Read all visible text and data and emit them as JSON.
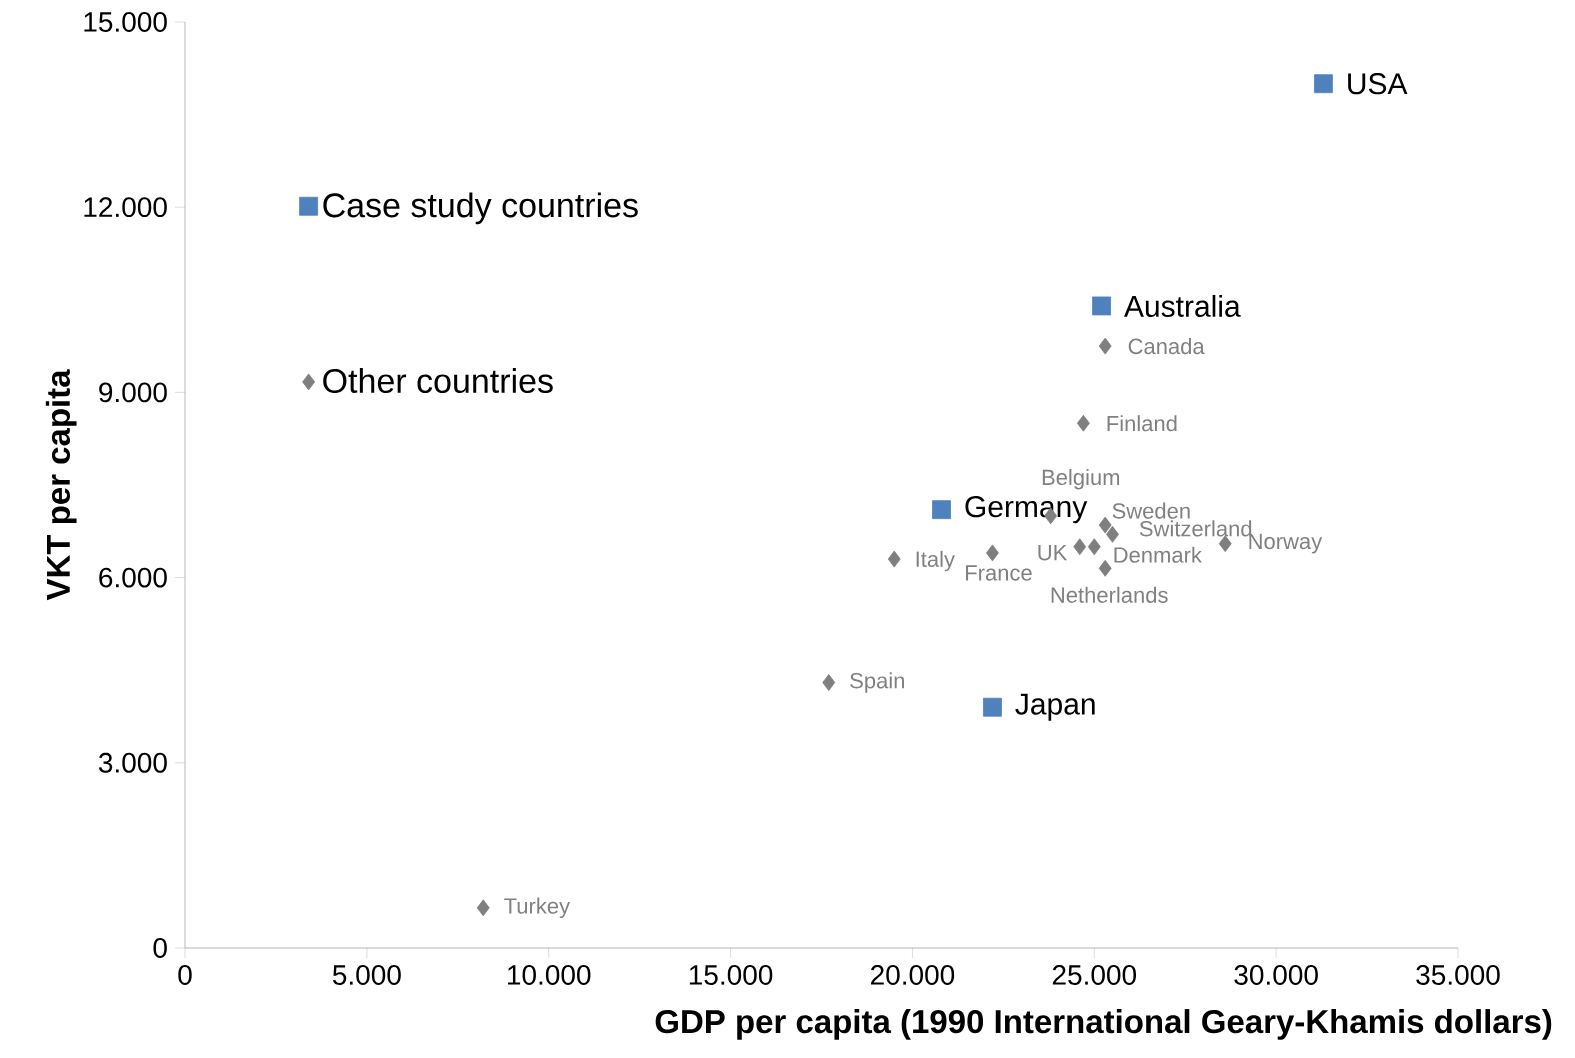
{
  "chart_data": {
    "type": "scatter",
    "xlabel": "GDP per capita (1990 International Geary-Khamis dollars)",
    "ylabel": "VKT per capita",
    "xlim": [
      0,
      35000
    ],
    "ylim": [
      0,
      15000
    ],
    "xticks": [
      0,
      {
        "value": 5000,
        "label": "5.000"
      },
      {
        "value": 10000,
        "label": "10.000"
      },
      {
        "value": 15000,
        "label": "15.000"
      },
      {
        "value": 20000,
        "label": "20.000"
      },
      {
        "value": 25000,
        "label": "25.000"
      },
      {
        "value": 30000,
        "label": "30.000"
      },
      {
        "value": 35000,
        "label": "35.000"
      }
    ],
    "yticks": [
      0,
      {
        "value": 3000,
        "label": "3.000"
      },
      {
        "value": 6000,
        "label": "6.000"
      },
      {
        "value": 9000,
        "label": "9.000"
      },
      {
        "value": 12000,
        "label": "12.000"
      },
      {
        "value": 15000,
        "label": "15.000"
      }
    ],
    "grid": false,
    "legend": "left",
    "series": [
      {
        "name": "Case study countries",
        "color": "#4f81bd",
        "marker": "square",
        "x": [
          31300,
          25200,
          20800,
          22200
        ],
        "values": [
          14000,
          10400,
          7100,
          3900
        ]
      },
      {
        "name": "Other countries",
        "color": "#7f7f7f",
        "marker": "diamond",
        "x": [
          25300,
          24700,
          23800,
          25300,
          25500,
          28600,
          24600,
          25000,
          22200,
          19500,
          25300,
          17700,
          8200
        ],
        "values": [
          9750,
          8500,
          7000,
          6850,
          6700,
          6550,
          6500,
          6500,
          6400,
          6300,
          6150,
          4300,
          650
        ]
      }
    ],
    "annotations": [
      {
        "text": "USA",
        "x": 31300,
        "y": 14000
      },
      {
        "text": "Australia",
        "x": 25200,
        "y": 10400
      },
      {
        "text": "Germany",
        "x": 20800,
        "y": 7100
      },
      {
        "text": "Japan",
        "x": 22200,
        "y": 3900
      },
      {
        "text": "Canada",
        "x": 25300,
        "y": 9750
      },
      {
        "text": "Finland",
        "x": 24700,
        "y": 8500
      },
      {
        "text": "Belgium",
        "x": 23800,
        "y": 7000
      },
      {
        "text": "Sweden",
        "x": 25300,
        "y": 6850
      },
      {
        "text": "Switzerland",
        "x": 25500,
        "y": 6700
      },
      {
        "text": "Norway",
        "x": 28600,
        "y": 6550
      },
      {
        "text": "UK",
        "x": 24600,
        "y": 6500
      },
      {
        "text": "Denmark",
        "x": 25000,
        "y": 6500
      },
      {
        "text": "France",
        "x": 22200,
        "y": 6400
      },
      {
        "text": "Italy",
        "x": 19500,
        "y": 6300
      },
      {
        "text": "Netherlands",
        "x": 25300,
        "y": 6150
      },
      {
        "text": "Spain",
        "x": 17700,
        "y": 4300
      },
      {
        "text": "Turkey",
        "x": 8200,
        "y": 650
      }
    ]
  }
}
